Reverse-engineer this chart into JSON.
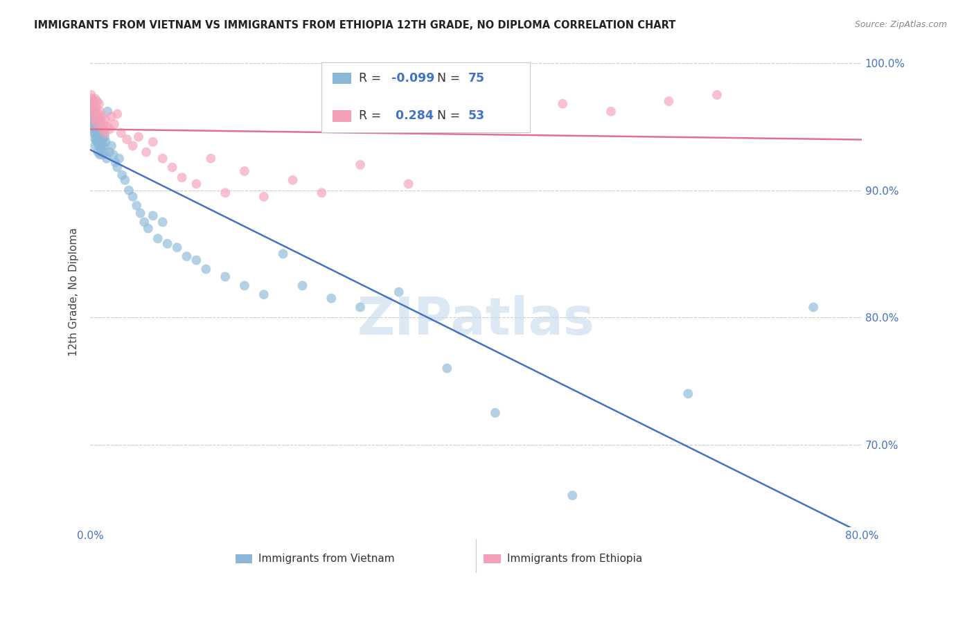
{
  "title": "IMMIGRANTS FROM VIETNAM VS IMMIGRANTS FROM ETHIOPIA 12TH GRADE, NO DIPLOMA CORRELATION CHART",
  "source": "Source: ZipAtlas.com",
  "ylabel": "12th Grade, No Diploma",
  "watermark": "ZIPatlas",
  "legend_label_vietnam": "Immigrants from Vietnam",
  "legend_label_ethiopia": "Immigrants from Ethiopia",
  "r_vietnam": -0.099,
  "n_vietnam": 75,
  "r_ethiopia": 0.284,
  "n_ethiopia": 53,
  "color_vietnam": "#8ab8d8",
  "color_ethiopia": "#f4a0b8",
  "trendline_vietnam": "#4472c4",
  "trendline_ethiopia": "#e07090",
  "background": "#ffffff",
  "xlim": [
    0.0,
    0.8
  ],
  "ylim": [
    0.635,
    1.005
  ],
  "y_ticks": [
    0.7,
    0.8,
    0.9,
    1.0
  ],
  "vietnam_x": [
    0.001,
    0.002,
    0.002,
    0.003,
    0.003,
    0.003,
    0.003,
    0.004,
    0.004,
    0.004,
    0.005,
    0.005,
    0.005,
    0.005,
    0.006,
    0.006,
    0.006,
    0.007,
    0.007,
    0.007,
    0.008,
    0.008,
    0.008,
    0.009,
    0.009,
    0.01,
    0.01,
    0.01,
    0.011,
    0.011,
    0.012,
    0.012,
    0.013,
    0.013,
    0.014,
    0.015,
    0.015,
    0.016,
    0.017,
    0.018,
    0.02,
    0.022,
    0.024,
    0.026,
    0.028,
    0.03,
    0.033,
    0.036,
    0.04,
    0.044,
    0.048,
    0.052,
    0.056,
    0.06,
    0.065,
    0.07,
    0.075,
    0.08,
    0.09,
    0.1,
    0.11,
    0.12,
    0.14,
    0.16,
    0.18,
    0.2,
    0.22,
    0.25,
    0.28,
    0.32,
    0.37,
    0.42,
    0.5,
    0.62,
    0.75
  ],
  "vietnam_y": [
    0.96,
    0.958,
    0.962,
    0.968,
    0.955,
    0.95,
    0.945,
    0.958,
    0.948,
    0.953,
    0.962,
    0.945,
    0.94,
    0.935,
    0.955,
    0.948,
    0.94,
    0.958,
    0.945,
    0.938,
    0.95,
    0.94,
    0.93,
    0.948,
    0.935,
    0.955,
    0.942,
    0.928,
    0.94,
    0.932,
    0.945,
    0.935,
    0.94,
    0.928,
    0.935,
    0.942,
    0.93,
    0.938,
    0.925,
    0.962,
    0.93,
    0.935,
    0.928,
    0.922,
    0.918,
    0.925,
    0.912,
    0.908,
    0.9,
    0.895,
    0.888,
    0.882,
    0.875,
    0.87,
    0.88,
    0.862,
    0.875,
    0.858,
    0.855,
    0.848,
    0.845,
    0.838,
    0.832,
    0.825,
    0.818,
    0.85,
    0.825,
    0.815,
    0.808,
    0.82,
    0.76,
    0.725,
    0.66,
    0.74,
    0.808
  ],
  "ethiopia_x": [
    0.001,
    0.002,
    0.002,
    0.002,
    0.003,
    0.003,
    0.004,
    0.004,
    0.005,
    0.005,
    0.006,
    0.006,
    0.007,
    0.007,
    0.008,
    0.009,
    0.01,
    0.01,
    0.011,
    0.012,
    0.013,
    0.014,
    0.015,
    0.016,
    0.018,
    0.02,
    0.022,
    0.025,
    0.028,
    0.032,
    0.038,
    0.044,
    0.05,
    0.058,
    0.065,
    0.075,
    0.085,
    0.095,
    0.11,
    0.125,
    0.14,
    0.16,
    0.18,
    0.21,
    0.24,
    0.28,
    0.33,
    0.39,
    0.44,
    0.49,
    0.54,
    0.6,
    0.65
  ],
  "ethiopia_y": [
    0.975,
    0.972,
    0.968,
    0.965,
    0.97,
    0.963,
    0.968,
    0.96,
    0.972,
    0.955,
    0.965,
    0.958,
    0.97,
    0.952,
    0.96,
    0.968,
    0.958,
    0.962,
    0.952,
    0.958,
    0.948,
    0.952,
    0.945,
    0.955,
    0.95,
    0.948,
    0.958,
    0.952,
    0.96,
    0.945,
    0.94,
    0.935,
    0.942,
    0.93,
    0.938,
    0.925,
    0.918,
    0.91,
    0.905,
    0.925,
    0.898,
    0.915,
    0.895,
    0.908,
    0.898,
    0.92,
    0.905,
    0.965,
    0.958,
    0.968,
    0.962,
    0.97,
    0.975
  ]
}
